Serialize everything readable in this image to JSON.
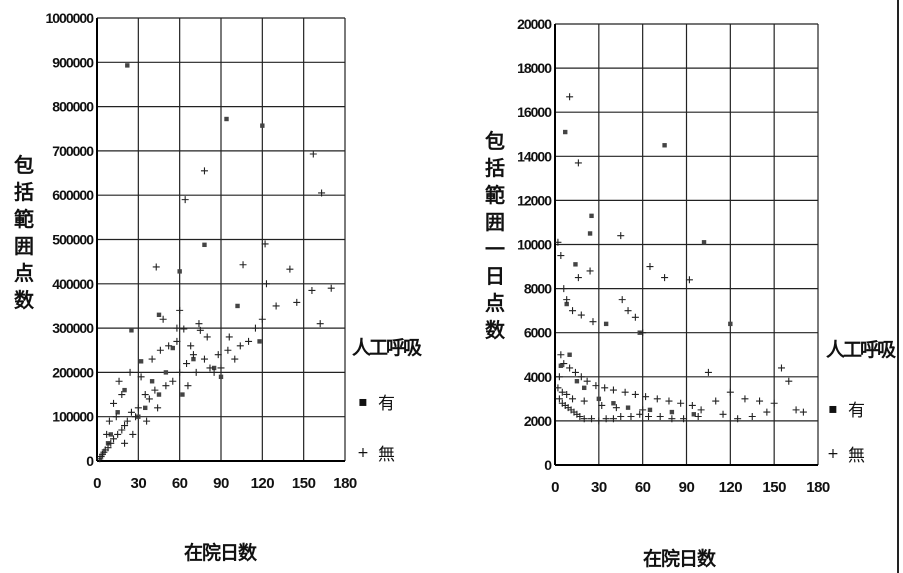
{
  "chart_data": [
    {
      "type": "scatter",
      "xlabel": "在院日数",
      "ylabel": "包括範囲点数",
      "xlim": [
        0,
        180
      ],
      "ylim": [
        0,
        1000000
      ],
      "x_ticks": [
        "0",
        "30",
        "60",
        "90",
        "120",
        "150",
        "180"
      ],
      "y_ticks": [
        "0",
        "100000",
        "200000",
        "300000",
        "400000",
        "500000",
        "600000",
        "700000",
        "800000",
        "900000",
        "1000000"
      ],
      "grid": true,
      "legend_title": "人工呼吸",
      "legend_position": "right",
      "series": [
        {
          "name": "有",
          "marker": "dot",
          "points": [
            [
              22,
              893000
            ],
            [
              94,
              772000
            ],
            [
              120,
              757000
            ],
            [
              78,
              488000
            ],
            [
              60,
              428000
            ],
            [
              45,
              330000
            ],
            [
              25,
              295000
            ],
            [
              32,
              225000
            ],
            [
              55,
              255000
            ],
            [
              40,
              180000
            ],
            [
              70,
              230000
            ],
            [
              102,
              350000
            ],
            [
              118,
              270000
            ],
            [
              85,
              210000
            ],
            [
              20,
              160000
            ],
            [
              15,
              110000
            ],
            [
              10,
              60000
            ],
            [
              35,
              120000
            ],
            [
              50,
              200000
            ],
            [
              62,
              150000
            ],
            [
              30,
              100000
            ],
            [
              8,
              40000
            ],
            [
              45,
              150000
            ],
            [
              90,
              190000
            ]
          ]
        },
        {
          "name": "無",
          "marker": "plus",
          "points": [
            [
              157,
              693000
            ],
            [
              78,
              655000
            ],
            [
              163,
              605000
            ],
            [
              64,
              590000
            ],
            [
              122,
              490000
            ],
            [
              43,
              438000
            ],
            [
              106,
              443000
            ],
            [
              140,
              433000
            ],
            [
              123,
              400000
            ],
            [
              170,
              390000
            ],
            [
              156,
              385000
            ],
            [
              145,
              358000
            ],
            [
              162,
              310000
            ],
            [
              48,
              320000
            ],
            [
              63,
              298000
            ],
            [
              75,
              295000
            ],
            [
              80,
              280000
            ],
            [
              95,
              250000
            ],
            [
              110,
              270000
            ],
            [
              115,
              300000
            ],
            [
              130,
              350000
            ],
            [
              120,
              320000
            ],
            [
              100,
              230000
            ],
            [
              90,
              210000
            ],
            [
              85,
              200000
            ],
            [
              70,
              240000
            ],
            [
              65,
              220000
            ],
            [
              55,
              180000
            ],
            [
              50,
              170000
            ],
            [
              42,
              160000
            ],
            [
              38,
              140000
            ],
            [
              35,
              150000
            ],
            [
              30,
              120000
            ],
            [
              28,
              100000
            ],
            [
              25,
              110000
            ],
            [
              22,
              90000
            ],
            [
              20,
              80000
            ],
            [
              18,
              70000
            ],
            [
              15,
              60000
            ],
            [
              12,
              50000
            ],
            [
              10,
              40000
            ],
            [
              8,
              30000
            ],
            [
              6,
              25000
            ],
            [
              5,
              20000
            ],
            [
              4,
              15000
            ],
            [
              3,
              10000
            ],
            [
              2,
              5000
            ],
            [
              14,
              100000
            ],
            [
              18,
              150000
            ],
            [
              24,
              200000
            ],
            [
              12,
              130000
            ],
            [
              16,
              180000
            ],
            [
              40,
              230000
            ],
            [
              46,
              250000
            ],
            [
              52,
              260000
            ],
            [
              58,
              270000
            ],
            [
              68,
              260000
            ],
            [
              72,
              200000
            ],
            [
              78,
              230000
            ],
            [
              82,
              210000
            ],
            [
              88,
              240000
            ],
            [
              96,
              280000
            ],
            [
              104,
              260000
            ],
            [
              60,
              200000
            ],
            [
              66,
              170000
            ],
            [
              44,
              120000
            ],
            [
              36,
              90000
            ],
            [
              26,
              60000
            ],
            [
              20,
              40000
            ],
            [
              9,
              90000
            ],
            [
              7,
              60000
            ],
            [
              32,
              190000
            ],
            [
              58,
              300000
            ],
            [
              60,
              340000
            ],
            [
              74,
              310000
            ]
          ]
        }
      ]
    },
    {
      "type": "scatter",
      "xlabel": "在院日数",
      "ylabel": "包括範囲一日点数",
      "xlim": [
        0,
        180
      ],
      "ylim": [
        0,
        20000
      ],
      "x_ticks": [
        "0",
        "30",
        "60",
        "90",
        "120",
        "150",
        "180"
      ],
      "y_ticks": [
        "0",
        "2000",
        "4000",
        "6000",
        "8000",
        "10000",
        "12000",
        "14000",
        "16000",
        "18000",
        "20000"
      ],
      "grid": true,
      "legend_title": "人工呼吸",
      "legend_position": "right",
      "series": [
        {
          "name": "有",
          "marker": "dot",
          "points": [
            [
              7,
              15100
            ],
            [
              75,
              14500
            ],
            [
              25,
              11300
            ],
            [
              24,
              10500
            ],
            [
              102,
              10100
            ],
            [
              58,
              6000
            ],
            [
              120,
              6400
            ],
            [
              35,
              6400
            ],
            [
              8,
              7300
            ],
            [
              14,
              9100
            ],
            [
              4,
              4500
            ],
            [
              10,
              5000
            ],
            [
              15,
              3800
            ],
            [
              20,
              3500
            ],
            [
              30,
              3000
            ],
            [
              40,
              2800
            ],
            [
              50,
              2600
            ],
            [
              65,
              2500
            ],
            [
              80,
              2400
            ],
            [
              95,
              2300
            ]
          ]
        },
        {
          "name": "無",
          "marker": "plus",
          "points": [
            [
              10,
              16700
            ],
            [
              16,
              13700
            ],
            [
              2,
              10100
            ],
            [
              4,
              9500
            ],
            [
              6,
              8000
            ],
            [
              16,
              8500
            ],
            [
              24,
              8800
            ],
            [
              45,
              10400
            ],
            [
              75,
              8500
            ],
            [
              65,
              9000
            ],
            [
              92,
              8400
            ],
            [
              8,
              7500
            ],
            [
              12,
              7000
            ],
            [
              18,
              6800
            ],
            [
              26,
              6500
            ],
            [
              46,
              7500
            ],
            [
              50,
              7000
            ],
            [
              55,
              6700
            ],
            [
              60,
              6000
            ],
            [
              4,
              5000
            ],
            [
              6,
              4600
            ],
            [
              10,
              4400
            ],
            [
              14,
              4200
            ],
            [
              18,
              4000
            ],
            [
              22,
              3800
            ],
            [
              28,
              3600
            ],
            [
              34,
              3500
            ],
            [
              40,
              3400
            ],
            [
              48,
              3300
            ],
            [
              55,
              3200
            ],
            [
              62,
              3100
            ],
            [
              70,
              3000
            ],
            [
              78,
              2900
            ],
            [
              86,
              2800
            ],
            [
              94,
              2700
            ],
            [
              105,
              4200
            ],
            [
              110,
              2900
            ],
            [
              120,
              3300
            ],
            [
              130,
              3000
            ],
            [
              140,
              2900
            ],
            [
              150,
              2800
            ],
            [
              155,
              4400
            ],
            [
              160,
              3800
            ],
            [
              165,
              2500
            ],
            [
              170,
              2400
            ],
            [
              3,
              3000
            ],
            [
              5,
              2800
            ],
            [
              7,
              2700
            ],
            [
              9,
              2600
            ],
            [
              11,
              2500
            ],
            [
              13,
              2400
            ],
            [
              15,
              2300
            ],
            [
              17,
              2200
            ],
            [
              20,
              2100
            ],
            [
              25,
              2100
            ],
            [
              30,
              2000
            ],
            [
              35,
              2100
            ],
            [
              40,
              2100
            ],
            [
              45,
              2200
            ],
            [
              52,
              2200
            ],
            [
              58,
              2300
            ],
            [
              64,
              2200
            ],
            [
              72,
              2200
            ],
            [
              80,
              2100
            ],
            [
              88,
              2100
            ],
            [
              98,
              2200
            ],
            [
              115,
              2300
            ],
            [
              125,
              2100
            ],
            [
              135,
              2200
            ],
            [
              145,
              2400
            ],
            [
              2,
              3500
            ],
            [
              3,
              4000
            ],
            [
              5,
              3300
            ],
            [
              8,
              3200
            ],
            [
              12,
              3000
            ],
            [
              20,
              2900
            ],
            [
              32,
              2700
            ],
            [
              42,
              2600
            ],
            [
              60,
              2500
            ],
            [
              100,
              2500
            ]
          ]
        }
      ]
    }
  ]
}
